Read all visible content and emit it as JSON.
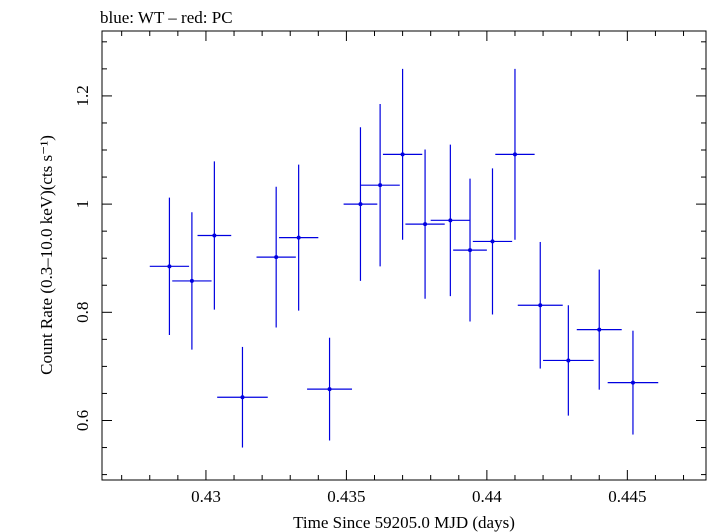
{
  "chart_data": {
    "type": "scatter",
    "title": "blue: WT – red: PC",
    "xlabel": "Time Since 59205.0 MJD (days)",
    "ylabel": "Count Rate (0.3–10.0 keV)(cts s⁻¹)",
    "xlim": [
      0.4263,
      0.4478
    ],
    "ylim": [
      0.49,
      1.32
    ],
    "x_ticks": [
      0.43,
      0.435,
      0.44,
      0.445
    ],
    "x_tick_labels": [
      "0.43",
      "0.435",
      "0.44",
      "0.445"
    ],
    "y_ticks": [
      0.6,
      0.8,
      1.0,
      1.2
    ],
    "y_tick_labels": [
      "0.6",
      "0.8",
      "1",
      "1.2"
    ],
    "grid": false,
    "series": [
      {
        "color": "#0000e0",
        "points": [
          {
            "x": 0.4287,
            "xerr": 0.0007,
            "y": 0.885,
            "yerr": 0.127
          },
          {
            "x": 0.4295,
            "xerr": 0.0007,
            "y": 0.858,
            "yerr": 0.127
          },
          {
            "x": 0.4303,
            "xerr": 0.0006,
            "y": 0.942,
            "yerr": 0.137
          },
          {
            "x": 0.4313,
            "xerr": 0.0009,
            "y": 0.643,
            "yerr": 0.093
          },
          {
            "x": 0.4325,
            "xerr": 0.0007,
            "y": 0.902,
            "yerr": 0.13
          },
          {
            "x": 0.4333,
            "xerr": 0.0007,
            "y": 0.938,
            "yerr": 0.135
          },
          {
            "x": 0.4344,
            "xerr": 0.0008,
            "y": 0.658,
            "yerr": 0.095
          },
          {
            "x": 0.4355,
            "xerr": 0.0006,
            "y": 1.0,
            "yerr": 0.142
          },
          {
            "x": 0.4362,
            "xerr": 0.0007,
            "y": 1.035,
            "yerr": 0.15
          },
          {
            "x": 0.437,
            "xerr": 0.0007,
            "y": 1.092,
            "yerr": 0.158
          },
          {
            "x": 0.4378,
            "xerr": 0.0007,
            "y": 0.963,
            "yerr": 0.138
          },
          {
            "x": 0.4387,
            "xerr": 0.0007,
            "y": 0.97,
            "yerr": 0.14
          },
          {
            "x": 0.4394,
            "xerr": 0.0006,
            "y": 0.915,
            "yerr": 0.132
          },
          {
            "x": 0.4402,
            "xerr": 0.0007,
            "y": 0.931,
            "yerr": 0.135
          },
          {
            "x": 0.441,
            "xerr": 0.0007,
            "y": 1.092,
            "yerr": 0.158
          },
          {
            "x": 0.4419,
            "xerr": 0.0008,
            "y": 0.813,
            "yerr": 0.117
          },
          {
            "x": 0.4429,
            "xerr": 0.0009,
            "y": 0.711,
            "yerr": 0.102
          },
          {
            "x": 0.444,
            "xerr": 0.0008,
            "y": 0.768,
            "yerr": 0.111
          },
          {
            "x": 0.4452,
            "xerr": 0.0009,
            "y": 0.67,
            "yerr": 0.096
          }
        ]
      }
    ]
  }
}
